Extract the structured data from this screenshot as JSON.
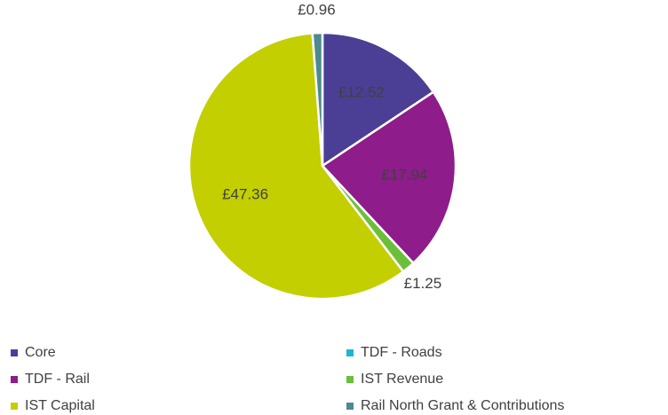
{
  "chart_data": {
    "type": "pie",
    "categories": [
      "Core",
      "TDF - Roads",
      "TDF - Rail",
      "IST Revenue",
      "IST Capital",
      "Rail North Grant & Contributions"
    ],
    "values": [
      12.52,
      0,
      17.94,
      1.25,
      47.36,
      0.96
    ],
    "value_labels": [
      "£12.52",
      null,
      "£17.94",
      "£1.25",
      "£47.36",
      "£0.96"
    ],
    "colors": [
      "#4a3f94",
      "#1fb5d1",
      "#8e1c8a",
      "#6bbf3a",
      "#c3cf00",
      "#4d8a8f"
    ],
    "legend": "bottom"
  }
}
